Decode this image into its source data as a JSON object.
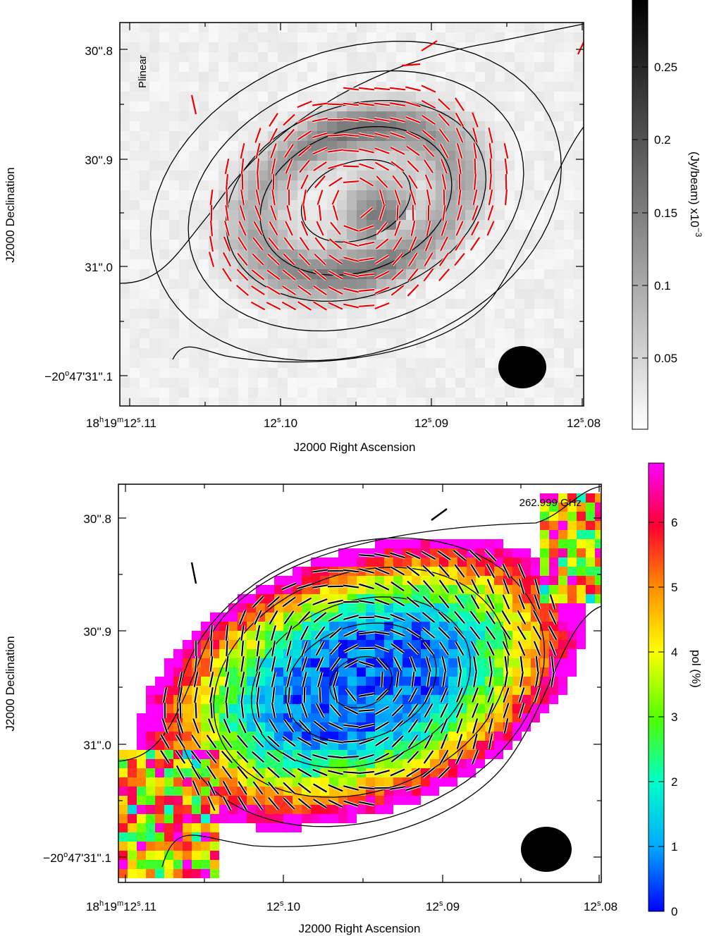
{
  "chart_data": [
    {
      "type": "heatmap",
      "panel": "top",
      "image_quantity": "Plinear",
      "label": "Plinear",
      "colormap": "grayscale",
      "xlabel": "J2000 Right Ascension",
      "ylabel": "J2000 Declination",
      "x_ticks": [
        "18h19m12s.11",
        "12s.10",
        "12s.09",
        "12s.08"
      ],
      "y_ticks": [
        "30''.8",
        "30''.9",
        "31''.0",
        "-20°47'31''.1"
      ],
      "colorbar": {
        "label": "(Jy/beam)  x10^-3",
        "ticks": [
          "0.05",
          "0.1",
          "0.15",
          "0.2",
          "0.25"
        ],
        "range": [
          0,
          0.29
        ]
      },
      "contours": "black, concentric elliptical",
      "vectors": "red polarization segments",
      "beam": "filled black ellipse, bottom-right"
    },
    {
      "type": "heatmap",
      "panel": "bottom",
      "image_quantity": "pol (%)",
      "label": "262.999 GHz",
      "colormap": "rainbow",
      "xlabel": "J2000 Right Ascension",
      "ylabel": "J2000 Declination",
      "x_ticks": [
        "18h19m12s.11",
        "12s.10",
        "12s.09",
        "12s.08"
      ],
      "y_ticks": [
        "30''.8",
        "30''.9",
        "31''.0",
        "-20°47'31''.1"
      ],
      "colorbar": {
        "label": "pol (%)",
        "ticks": [
          "0",
          "1",
          "2",
          "3",
          "4",
          "5",
          "6"
        ],
        "range": [
          0,
          6.9
        ]
      },
      "contours": "black, concentric elliptical",
      "vectors": "black polarization segments",
      "beam": "filled black ellipse, bottom-right"
    }
  ],
  "texts": {
    "top_label": "Plinear",
    "bottom_label": "262.999 GHz",
    "xlabel": "J2000 Right Ascension",
    "ylabel": "J2000 Declination",
    "cb_top_label": "(Jy/beam)  x10",
    "cb_top_exp": "−3",
    "cb_bottom_label": "pol (%)",
    "x_tick_first_a": "18",
    "x_tick_first_h": "h",
    "x_tick_first_b": "19",
    "x_tick_first_m": "m",
    "x_tick_first_c": "12",
    "x_tick_first_s": "s",
    "x_tick_first_d": ".11",
    "x_tick_2a": "12",
    "x_tick_2s": "s",
    "x_tick_2b": ".10",
    "x_tick_3a": "12",
    "x_tick_3s": "s",
    "x_tick_3b": ".09",
    "x_tick_4a": "12",
    "x_tick_4s": "s",
    "x_tick_4b": ".08",
    "y_tick_1": "30''.8",
    "y_tick_2": "30''.9",
    "y_tick_3": "31''.0",
    "y_tick_4a": "−20",
    "y_tick_4o": "o",
    "y_tick_4b": "47'31''.1",
    "cbt_1": "0.05",
    "cbt_2": "0.1",
    "cbt_3": "0.15",
    "cbt_4": "0.2",
    "cbt_5": "0.25",
    "cbb_0": "0",
    "cbb_1": "1",
    "cbb_2": "2",
    "cbb_3": "3",
    "cbb_4": "4",
    "cbb_5": "5",
    "cbb_6": "6"
  }
}
